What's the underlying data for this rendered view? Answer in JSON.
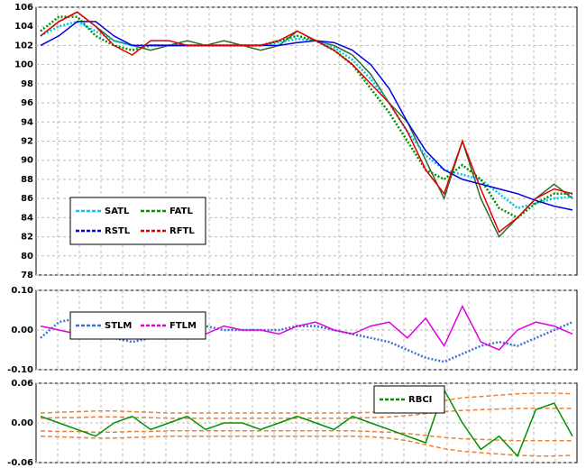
{
  "chart_data": [
    {
      "type": "line",
      "ylim": [
        78,
        106
      ],
      "yticks": [
        78,
        80,
        82,
        84,
        86,
        88,
        90,
        92,
        94,
        96,
        98,
        100,
        102,
        104,
        106
      ],
      "grid": true,
      "legend": "lower left",
      "legend_columns": 2,
      "series": [
        {
          "color": "#2e6b2e",
          "dash": "solid",
          "values": [
            103,
            104.5,
            105.5,
            104,
            102.5,
            102,
            101.5,
            102,
            102.5,
            102,
            102.5,
            102,
            101.5,
            102,
            103.5,
            102.5,
            102,
            101,
            99,
            96,
            94,
            90,
            86,
            92,
            86,
            82,
            84,
            86,
            87.5,
            86
          ]
        },
        {
          "name": "SATL",
          "color": "#00c8e8",
          "dash": "dotted",
          "values": [
            103,
            104,
            104.5,
            103.5,
            102.5,
            102,
            102,
            102,
            102,
            102,
            102,
            102,
            102,
            102.3,
            102.7,
            102.5,
            101.8,
            100.5,
            98.5,
            96,
            93,
            90.5,
            89,
            88.5,
            88,
            86.5,
            85,
            85.5,
            86,
            86.2
          ]
        },
        {
          "name": "FATL",
          "color": "#009000",
          "dash": "dotted",
          "values": [
            103.5,
            105,
            105,
            103,
            102,
            101.5,
            102,
            102,
            102,
            102,
            102,
            102,
            102,
            102.5,
            103,
            102.5,
            101.5,
            100,
            97.5,
            95,
            92,
            89,
            88,
            89.5,
            88,
            85,
            84,
            85.5,
            86.5,
            86.5
          ]
        },
        {
          "name": "RSTL",
          "color": "#0000e0",
          "dash": "solid",
          "values": [
            102,
            103,
            104.5,
            104.5,
            103,
            102,
            102,
            102,
            102,
            102,
            102,
            102,
            102,
            102,
            102.3,
            102.5,
            102.3,
            101.5,
            100,
            97.5,
            94,
            91,
            89,
            88,
            87.5,
            87,
            86.5,
            85.8,
            85.2,
            84.8
          ]
        },
        {
          "name": "RFTL",
          "color": "#e00000",
          "dash": "solid",
          "values": [
            103,
            104.5,
            105.5,
            104,
            102,
            101,
            102.5,
            102.5,
            102,
            102,
            102,
            102,
            102,
            102.5,
            103.5,
            102.5,
            101.5,
            100,
            98,
            96,
            93,
            89,
            86.5,
            92,
            87,
            82.5,
            84,
            86,
            87,
            86.5
          ]
        }
      ]
    },
    {
      "type": "line",
      "ylim": [
        -0.1,
        0.1
      ],
      "yticks": [
        {
          "value": -0.1,
          "label": "-0.10"
        },
        {
          "value": 0,
          "label": "0.00"
        },
        {
          "value": 0.1,
          "label": "0.10"
        }
      ],
      "grid": true,
      "legend": "lower left",
      "legend_columns": 2,
      "series": [
        {
          "name": "STLM",
          "color": "#4070d0",
          "dash": "dotted",
          "values": [
            -0.02,
            0.02,
            0.03,
            0.01,
            -0.02,
            -0.03,
            -0.02,
            0,
            0.01,
            0.01,
            0,
            0,
            0,
            0,
            0.01,
            0.01,
            0,
            -0.01,
            -0.02,
            -0.03,
            -0.05,
            -0.07,
            -0.08,
            -0.06,
            -0.04,
            -0.03,
            -0.04,
            -0.02,
            0,
            0.02
          ]
        },
        {
          "name": "FTLM",
          "color": "#e000e0",
          "dash": "solid",
          "values": [
            0.01,
            0,
            -0.01,
            -0.02,
            -0.01,
            -0.01,
            0,
            0.01,
            0,
            -0.01,
            0.01,
            0,
            0,
            -0.01,
            0.01,
            0.02,
            0,
            -0.01,
            0.01,
            0.02,
            -0.02,
            0.03,
            -0.04,
            0.06,
            -0.03,
            -0.05,
            0,
            0.02,
            0.01,
            -0.01
          ]
        }
      ]
    },
    {
      "type": "line",
      "ylim": [
        -0.06,
        0.06
      ],
      "yticks": [
        {
          "value": -0.06,
          "label": "-0.06"
        },
        {
          "value": 0,
          "label": "0.00"
        },
        {
          "value": 0.06,
          "label": "0.06"
        }
      ],
      "grid": true,
      "legend": "upper right",
      "legend_columns": 1,
      "series": [
        {
          "color": "#f08030",
          "dash": "dashed",
          "values": [
            0.015,
            0.016,
            0.017,
            0.018,
            0.018,
            0.017,
            0.016,
            0.015,
            0.015,
            0.015,
            0.015,
            0.015,
            0.015,
            0.015,
            0.015,
            0.015,
            0.015,
            0.015,
            0.016,
            0.018,
            0.022,
            0.028,
            0.034,
            0.038,
            0.04,
            0.042,
            0.044,
            0.045,
            0.045,
            0.044
          ]
        },
        {
          "color": "#f08030",
          "dash": "dashed",
          "values": [
            0.007,
            0.008,
            0.008,
            0.009,
            0.009,
            0.008,
            0.008,
            0.007,
            0.007,
            0.007,
            0.007,
            0.007,
            0.007,
            0.007,
            0.007,
            0.007,
            0.007,
            0.007,
            0.008,
            0.009,
            0.011,
            0.014,
            0.017,
            0.019,
            0.02,
            0.021,
            0.022,
            0.022,
            0.022,
            0.022
          ]
        },
        {
          "color": "#f08030",
          "dash": "dashed",
          "values": [
            -0.012,
            -0.013,
            -0.013,
            -0.014,
            -0.014,
            -0.013,
            -0.013,
            -0.012,
            -0.012,
            -0.012,
            -0.012,
            -0.012,
            -0.012,
            -0.012,
            -0.012,
            -0.012,
            -0.012,
            -0.012,
            -0.013,
            -0.014,
            -0.016,
            -0.019,
            -0.022,
            -0.024,
            -0.025,
            -0.026,
            -0.027,
            -0.027,
            -0.027,
            -0.027
          ]
        },
        {
          "color": "#f08030",
          "dash": "dashed",
          "values": [
            -0.02,
            -0.021,
            -0.022,
            -0.023,
            -0.023,
            -0.022,
            -0.021,
            -0.02,
            -0.02,
            -0.02,
            -0.02,
            -0.02,
            -0.02,
            -0.02,
            -0.02,
            -0.02,
            -0.02,
            -0.02,
            -0.021,
            -0.023,
            -0.027,
            -0.033,
            -0.039,
            -0.043,
            -0.045,
            -0.047,
            -0.049,
            -0.05,
            -0.05,
            -0.049
          ]
        },
        {
          "name": "RBCI",
          "color": "#009000",
          "dash": "solid",
          "values": [
            0.01,
            0,
            -0.01,
            -0.02,
            0,
            0.01,
            -0.01,
            0,
            0.01,
            -0.01,
            0,
            0,
            -0.01,
            0,
            0.01,
            0,
            -0.01,
            0.01,
            0,
            -0.01,
            -0.02,
            -0.03,
            0.05,
            0,
            -0.04,
            -0.02,
            -0.05,
            0.02,
            0.03,
            -0.02
          ]
        }
      ]
    }
  ]
}
